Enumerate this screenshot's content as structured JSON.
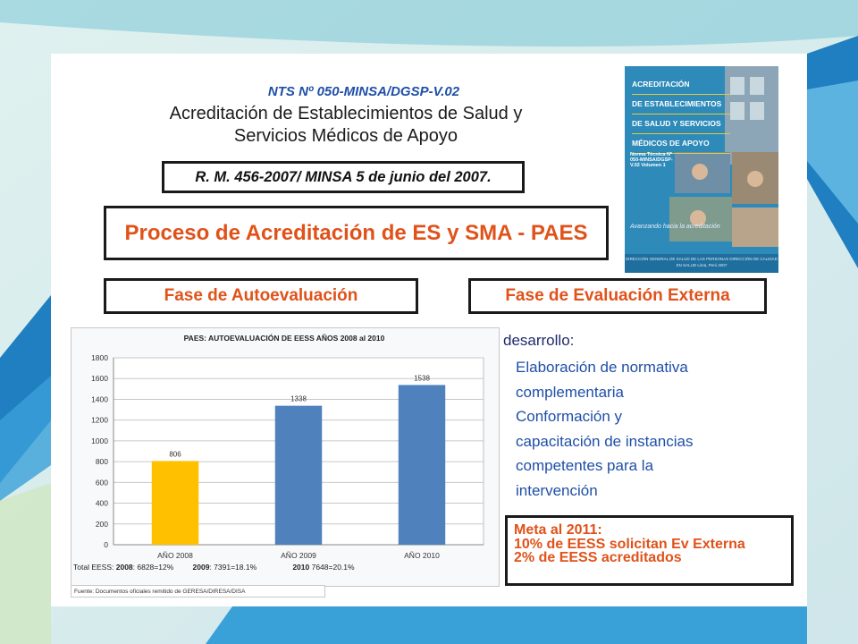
{
  "header": {
    "code": "NTS Nº 050-MINSA/DGSP-V.02",
    "title_line1": "Acreditación de Establecimientos de Salud y",
    "title_line2": "Servicios Médicos de Apoyo",
    "rm": "R. M. 456-2007/ MINSA 5 de junio del 2007."
  },
  "process_title": "Proceso de Acreditación de ES y SMA - PAES",
  "phases": {
    "phase1": "Fase de Autoevaluación",
    "phase2": "Fase de Evaluación Externa"
  },
  "cover": {
    "lines": [
      "ACREDITACIÓN",
      "DE ESTABLECIMIENTOS",
      "DE SALUD Y SERVICIOS",
      "MÉDICOS DE APOYO"
    ],
    "sub": "Norma Técnica Nº 050-MINSA/DGSP-V.02 Volumen 1",
    "tagline": "Avanzando hacia la acreditación",
    "footer": "DIRECCIÓN GENERAL DE SALUD DE LAS PERSONAS DIRECCIÓN DE CALIDAD EN SALUD Lima, Perú 2007"
  },
  "chart_data": {
    "type": "bar",
    "title": "PAES: AUTOEVALUACIÓN DE EESS AÑOS 2008 al 2010",
    "categories": [
      "AÑO 2008",
      "AÑO 2009",
      "AÑO 2010"
    ],
    "values": [
      806,
      1338,
      1538
    ],
    "value_labels": [
      "806",
      "1338",
      "1538"
    ],
    "ylim": [
      0,
      1800
    ],
    "yticks": [
      "0",
      "200",
      "400",
      "600",
      "800",
      "1000",
      "1200",
      "1400",
      "1600",
      "1800"
    ],
    "colors": [
      "#ffc000",
      "#4f81bd",
      "#4f81bd"
    ],
    "grid": true,
    "xlabel": "",
    "ylabel": ""
  },
  "stats": {
    "label": "Total EESS:",
    "y2008": "2008",
    "v2008": ": 6828=12%",
    "y2009": "2009",
    "v2009": ": 7391=18.1%",
    "y2010": "2010",
    "v2010": " 7648=20.1%"
  },
  "source": "Fuente: Documentos oficiales remitido de GERESA/DIRESA/DISA",
  "desarrollo": {
    "heading": "desarrollo:",
    "lines": [
      "Elaboración de normativa",
      "complementaria",
      "Conformación y",
      "capacitación de instancias",
      "competentes para la",
      "intervención"
    ]
  },
  "meta": {
    "line1": "Meta al 2011:",
    "line2": "10% de EESS solicitan Ev Externa",
    "line3": "2% de EESS acreditados"
  },
  "colors": {
    "accent_orange": "#e0521a",
    "text_blue": "#1f4fa8",
    "bar_gold": "#ffc000",
    "bar_blue": "#4f81bd"
  }
}
